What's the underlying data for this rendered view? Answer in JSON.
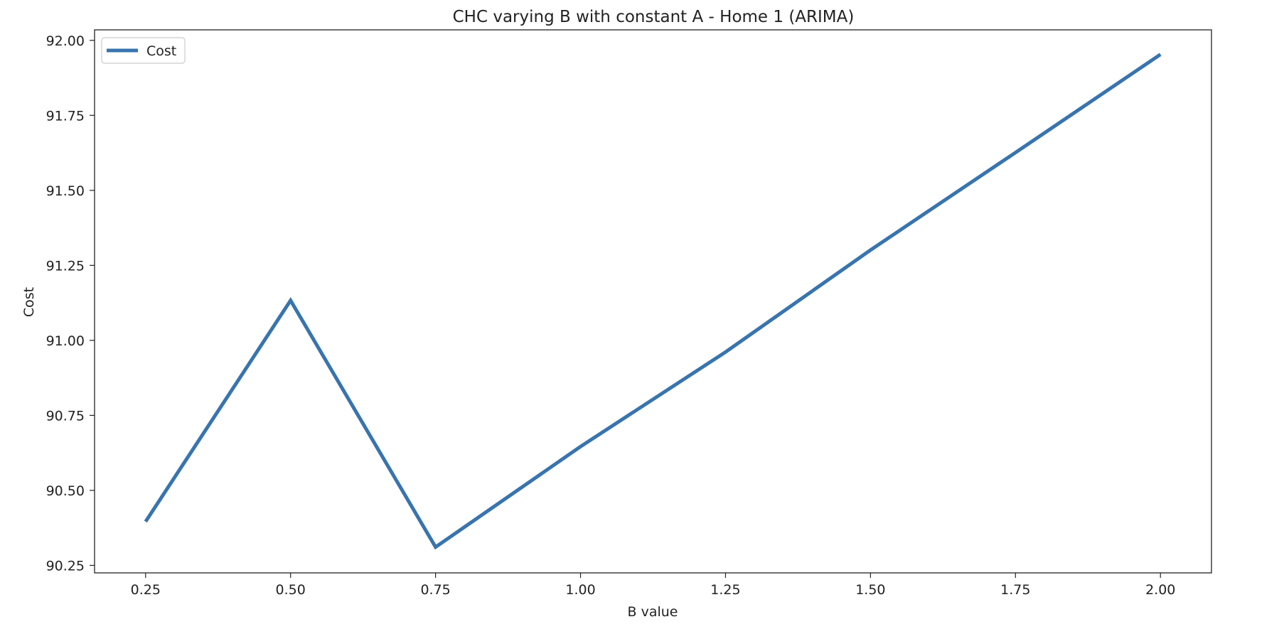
{
  "chart_data": {
    "type": "line",
    "title": "CHC varying B with constant A - Home 1 (ARIMA)",
    "xlabel": "B value",
    "ylabel": "Cost",
    "x": [
      0.25,
      0.5,
      0.75,
      1.0,
      1.25,
      1.5,
      1.75,
      2.0
    ],
    "x_tick_labels": [
      "0.25",
      "0.50",
      "0.75",
      "1.00",
      "1.25",
      "1.50",
      "1.75",
      "2.00"
    ],
    "y_tick_values": [
      90.25,
      90.5,
      90.75,
      91.0,
      91.25,
      91.5,
      91.75,
      92.0
    ],
    "y_tick_labels": [
      "90.25",
      "90.50",
      "90.75",
      "91.00",
      "91.25",
      "91.50",
      "91.75",
      "92.00"
    ],
    "xlim": [
      0.162,
      2.088
    ],
    "ylim": [
      90.225,
      92.035
    ],
    "grid": false,
    "legend": "upper left",
    "series": [
      {
        "name": "Cost",
        "color": "#3874ae",
        "values": [
          90.396,
          91.133,
          90.311,
          90.646,
          90.961,
          91.301,
          91.626,
          91.953
        ]
      }
    ]
  }
}
